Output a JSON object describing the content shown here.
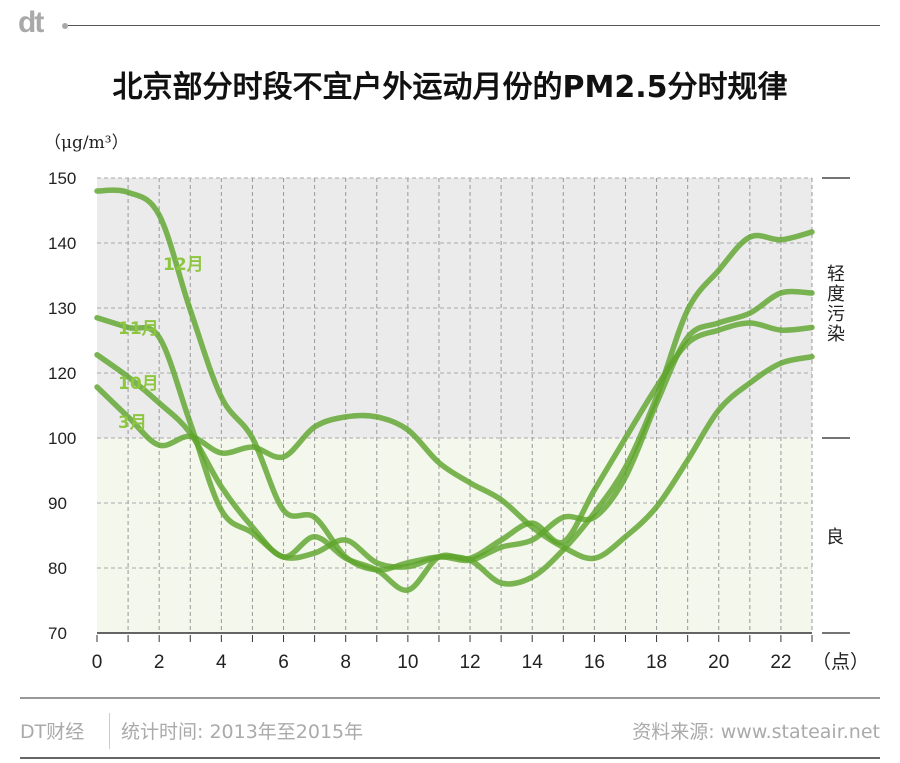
{
  "brand": {
    "logo": "dt"
  },
  "title": "北京部分时段不宜户外运动月份的PM2.5分时规律",
  "unit": "（μg/m³）",
  "zones": {
    "polluted": "轻度污染",
    "good": "良"
  },
  "colors": {
    "line": "#5fa52d",
    "label": "#8dc63f",
    "polluted_bg": "#ebebeb",
    "good_bg": "#f3f7ec"
  },
  "footer": {
    "brand": "DT财经",
    "period": "统计时间: 2013年至2015年",
    "source": "资料来源: www.stateair.net"
  },
  "chart_data": {
    "type": "line",
    "title": "北京部分时段不宜户外运动月份的PM2.5分时规律",
    "ylabel": "（μg/m³）",
    "xlabel": "（点）",
    "x": [
      0,
      1,
      2,
      3,
      4,
      5,
      6,
      7,
      8,
      9,
      10,
      11,
      12,
      13,
      14,
      15,
      16,
      17,
      18,
      19,
      20,
      21,
      22,
      23
    ],
    "xticks": [
      "0",
      "2",
      "4",
      "6",
      "8",
      "10",
      "12",
      "14",
      "16",
      "18",
      "20",
      "22"
    ],
    "yticks": [
      "150",
      "140",
      "130",
      "120",
      "100",
      "90",
      "80",
      "70"
    ],
    "ylim": [
      70,
      150
    ],
    "y_axis_break": "110 omitted between 100 and 120",
    "grid": true,
    "threshold": 100,
    "series": [
      {
        "name": "12月",
        "values": [
          148,
          147.8,
          144.3,
          129.7,
          112.6,
          100,
          88.9,
          87.8,
          81.7,
          79.7,
          80.8,
          81.7,
          81.2,
          77.7,
          78.6,
          82.8,
          88.5,
          95.5,
          112.6,
          129.7,
          135.8,
          140.9,
          140.5,
          141.7
        ]
      },
      {
        "name": "11月",
        "values": [
          128.5,
          127,
          125.5,
          104.6,
          88.9,
          85.4,
          81.7,
          82.3,
          84.3,
          80.8,
          80.2,
          81.7,
          81.2,
          83.2,
          84.3,
          87.8,
          87.8,
          94,
          110.7,
          125.5,
          127.7,
          129.2,
          132.3,
          132.3
        ]
      },
      {
        "name": "10月",
        "values": [
          122.8,
          118.8,
          110.8,
          101.5,
          92.5,
          86.3,
          81.7,
          84.8,
          81.5,
          79.7,
          76.6,
          81.7,
          81.5,
          84.3,
          86.9,
          84,
          92,
          100,
          115.7,
          124.6,
          126.6,
          127.7,
          126.6,
          127
        ]
      },
      {
        "name": "3月",
        "values": [
          115.7,
          106.5,
          98.9,
          100.5,
          97.7,
          98.6,
          97.1,
          103.4,
          106.5,
          106.5,
          102.5,
          96.2,
          93.1,
          90.5,
          86.3,
          83.2,
          81.5,
          84.8,
          89.4,
          96.6,
          108.6,
          116.9,
          121.5,
          122.5
        ]
      }
    ]
  }
}
